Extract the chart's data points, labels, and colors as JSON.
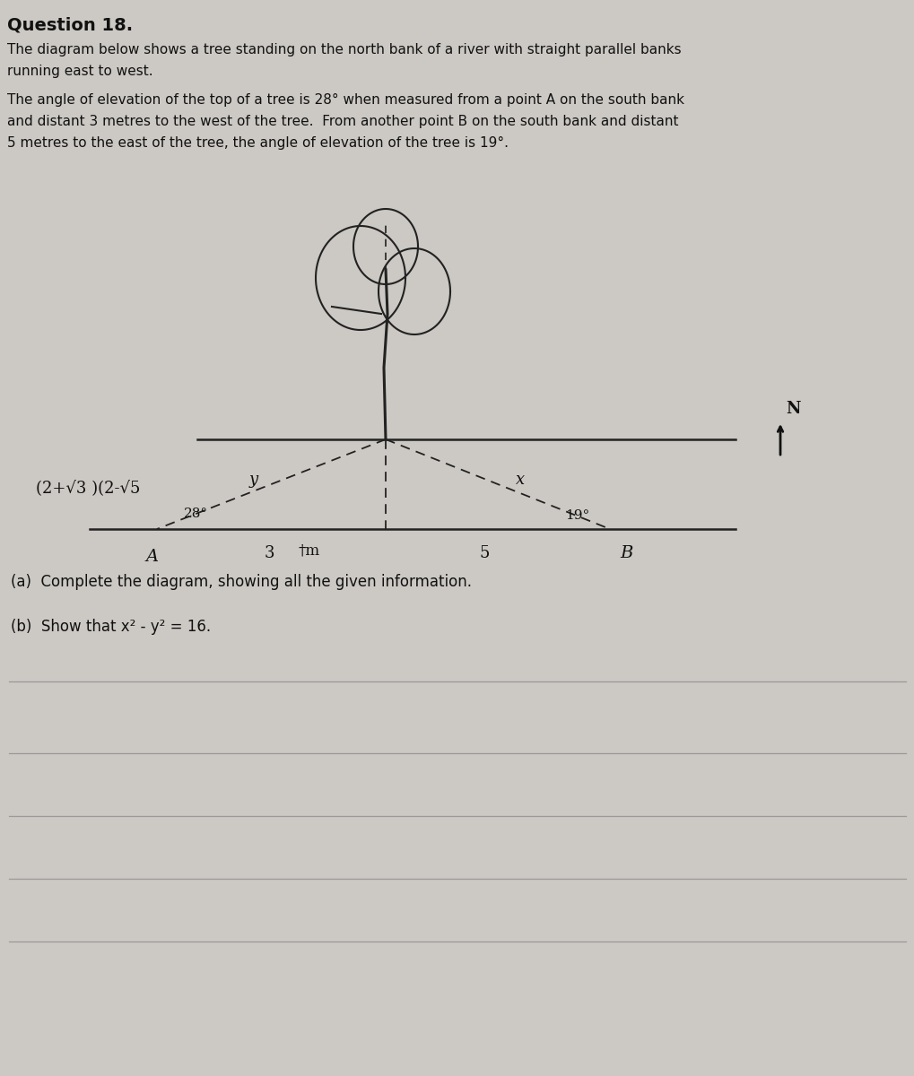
{
  "title": "Question 18.",
  "desc_line1": "The diagram below shows a tree standing on the north bank of a river with straight parallel banks",
  "desc_line2": "running east to west.",
  "desc_line3": "The angle of elevation of the top of a tree is 28° when measured from a point A on the south bank",
  "desc_line4": "and distant 3 metres to the west of the tree.  From another point B on the south bank and distant",
  "desc_line5": "5 metres to the east of the tree, the angle of elevation of the tree is 19°.",
  "label_left_side": "(2+√3 )(2-√5",
  "label_3": "3",
  "label_5": "5",
  "label_fm": "†m",
  "label_A": "A",
  "label_B": "B",
  "label_y": "y",
  "label_x": "x",
  "angle_A_label": "28°",
  "angle_B_label": "19°",
  "north_label": "N",
  "part_a": "(a)  Complete the diagram, showing all the given information.",
  "part_b_unicode": "(b)  Show that x² - y² = 16.",
  "bg_color": "#ccc9c4",
  "text_color": "#111111",
  "line_color": "#222222"
}
